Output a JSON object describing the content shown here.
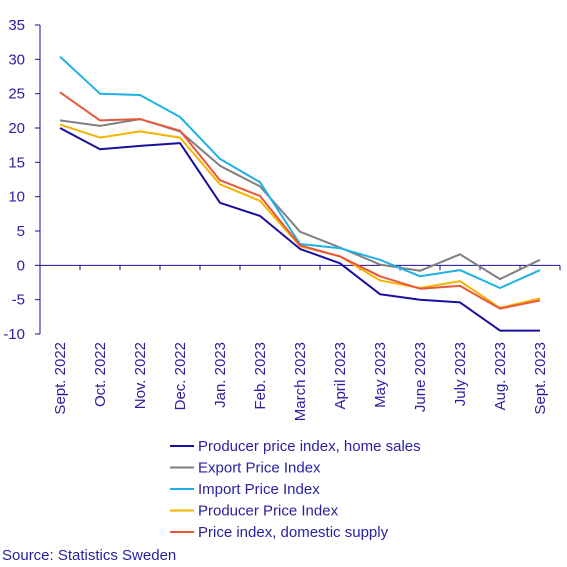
{
  "chart_data": {
    "type": "line",
    "categories": [
      "Sept. 2022",
      "Oct. 2022",
      "Nov. 2022",
      "Dec. 2022",
      "Jan. 2023",
      "Feb. 2023",
      "March 2023",
      "April 2023",
      "May 2023",
      "June 2023",
      "July 2023",
      "Aug. 2023",
      "Sept. 2023"
    ],
    "ylim": [
      -10,
      35
    ],
    "yticks": [
      -10,
      -5,
      0,
      5,
      10,
      15,
      20,
      25,
      30,
      35
    ],
    "grid": false,
    "legend_position": "bottom",
    "series": [
      {
        "name": "Producer price index, home sales",
        "color": "#1a0f9c",
        "values": [
          20.0,
          16.9,
          17.4,
          17.8,
          9.1,
          7.2,
          2.4,
          0.3,
          -4.2,
          -5.0,
          -5.4,
          -9.5,
          -9.5
        ]
      },
      {
        "name": "Export Price Index",
        "color": "#808080",
        "values": [
          21.1,
          20.3,
          21.3,
          19.5,
          14.5,
          11.5,
          4.9,
          2.6,
          0.1,
          -0.8,
          1.6,
          -2.0,
          0.8
        ]
      },
      {
        "name": "Import Price Index",
        "color": "#1eb1e6",
        "values": [
          30.4,
          25.0,
          24.8,
          21.6,
          15.5,
          12.1,
          3.1,
          2.5,
          0.8,
          -1.6,
          -0.7,
          -3.3,
          -0.7
        ]
      },
      {
        "name": "Producer Price Index",
        "color": "#f5b400",
        "values": [
          20.5,
          18.6,
          19.5,
          18.6,
          11.8,
          9.4,
          2.8,
          1.3,
          -2.2,
          -3.3,
          -2.3,
          -6.2,
          -4.8
        ]
      },
      {
        "name": "Price index, domestic supply",
        "color": "#e8573c",
        "values": [
          25.2,
          21.1,
          21.3,
          19.6,
          12.4,
          10.1,
          2.9,
          1.3,
          -1.6,
          -3.4,
          -3.0,
          -6.3,
          -5.1
        ]
      }
    ]
  },
  "source_text": "Source: Statistics Sweden"
}
